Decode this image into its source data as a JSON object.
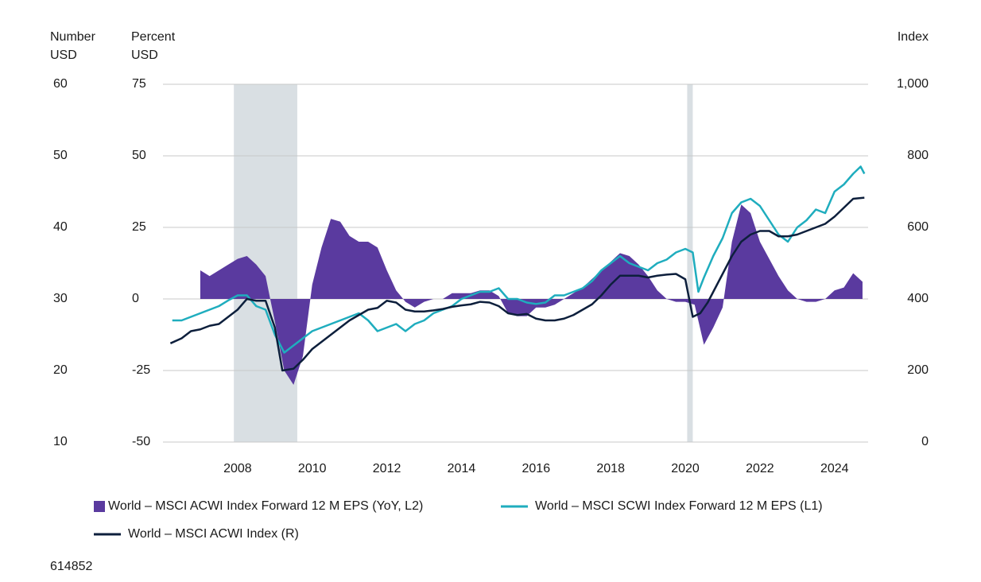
{
  "chart_data": {
    "type": "area-line",
    "y_label": [
      "Number",
      "USD"
    ],
    "y3_label": [
      "Percent",
      "USD"
    ],
    "y2_label": [
      "Index"
    ],
    "source": "614852",
    "xlim": [
      2006,
      2024.9
    ],
    "xticks": [
      2008,
      2010,
      2012,
      2014,
      2016,
      2018,
      2020,
      2022,
      2024
    ],
    "ylim": [
      10,
      60
    ],
    "yticks": [
      10,
      20,
      30,
      40,
      50,
      60
    ],
    "y3lim": [
      -50,
      75
    ],
    "y3ticks": [
      -50,
      -25,
      0,
      25,
      50,
      75
    ],
    "y2lim": [
      0,
      1000
    ],
    "y2ticks": [
      0,
      200,
      400,
      600,
      800,
      {
        "value": 1000,
        "label": "1,000"
      }
    ],
    "grid": true,
    "shaded_x_ranges": [
      [
        2007.9,
        2009.6
      ],
      [
        2020.05,
        2020.2
      ]
    ],
    "shade_color": "#d9dfe3",
    "series": [
      {
        "name": "World – MSCI ACWI Index Forward 12 M EPS (YoY, L2)",
        "kind": "area",
        "axis": "y3",
        "color": "#5a3a9f",
        "x": [
          2007.0,
          2007.25,
          2007.5,
          2007.75,
          2008.0,
          2008.25,
          2008.5,
          2008.75,
          2009.0,
          2009.25,
          2009.5,
          2009.75,
          2010.0,
          2010.25,
          2010.5,
          2010.75,
          2011.0,
          2011.25,
          2011.5,
          2011.75,
          2012.0,
          2012.25,
          2012.5,
          2012.75,
          2013.0,
          2013.25,
          2013.5,
          2013.75,
          2014.0,
          2014.25,
          2014.5,
          2014.75,
          2015.0,
          2015.25,
          2015.5,
          2015.75,
          2016.0,
          2016.25,
          2016.5,
          2016.75,
          2017.0,
          2017.25,
          2017.5,
          2017.75,
          2018.0,
          2018.25,
          2018.5,
          2018.75,
          2019.0,
          2019.25,
          2019.5,
          2019.75,
          2020.0,
          2020.25,
          2020.5,
          2020.75,
          2021.0,
          2021.25,
          2021.5,
          2021.75,
          2022.0,
          2022.25,
          2022.5,
          2022.75,
          2023.0,
          2023.25,
          2023.5,
          2023.75,
          2024.0,
          2024.25,
          2024.5,
          2024.75
        ],
        "values": [
          10,
          8,
          10,
          12,
          14,
          15,
          12,
          8,
          -8,
          -25,
          -30,
          -20,
          5,
          18,
          28,
          27,
          22,
          20,
          20,
          18,
          10,
          3,
          -1,
          -3,
          -1,
          0,
          0,
          2,
          2,
          2,
          3,
          3,
          1,
          -5,
          -6,
          -6,
          -3,
          -3,
          -2,
          0,
          2,
          4,
          7,
          10,
          13,
          16,
          15,
          12,
          8,
          3,
          0,
          -1,
          -1,
          -2,
          -16,
          -10,
          -3,
          20,
          33,
          30,
          20,
          14,
          8,
          3,
          0,
          -1,
          -1,
          0,
          3,
          4,
          9,
          6
        ]
      },
      {
        "name": "World – MSCI SCWI Index Forward 12 M EPS (L1)",
        "kind": "line",
        "axis": "y",
        "color": "#1fadbe",
        "x": [
          2006.25,
          2006.5,
          2006.75,
          2007.0,
          2007.25,
          2007.5,
          2007.75,
          2008.0,
          2008.25,
          2008.5,
          2008.75,
          2009.0,
          2009.25,
          2009.5,
          2009.75,
          2010.0,
          2010.25,
          2010.5,
          2010.75,
          2011.0,
          2011.25,
          2011.5,
          2011.75,
          2012.0,
          2012.25,
          2012.5,
          2012.75,
          2013.0,
          2013.25,
          2013.5,
          2013.75,
          2014.0,
          2014.25,
          2014.5,
          2014.75,
          2015.0,
          2015.25,
          2015.5,
          2015.75,
          2016.0,
          2016.25,
          2016.5,
          2016.75,
          2017.0,
          2017.25,
          2017.5,
          2017.75,
          2018.0,
          2018.25,
          2018.5,
          2018.75,
          2019.0,
          2019.25,
          2019.5,
          2019.75,
          2020.0,
          2020.2,
          2020.35,
          2020.5,
          2020.75,
          2021.0,
          2021.25,
          2021.5,
          2021.75,
          2022.0,
          2022.25,
          2022.5,
          2022.75,
          2023.0,
          2023.25,
          2023.5,
          2023.75,
          2024.0,
          2024.25,
          2024.5,
          2024.7,
          2024.8
        ],
        "values": [
          27,
          27,
          27.5,
          28,
          28.5,
          29,
          29.8,
          30.5,
          30.5,
          29,
          28.5,
          25,
          22.5,
          23.5,
          24.5,
          25.5,
          26,
          26.5,
          27,
          27.5,
          28,
          27,
          25.5,
          26,
          26.5,
          25.5,
          26.5,
          27,
          28,
          28.5,
          29,
          30,
          30.5,
          31,
          31,
          31.5,
          30,
          30,
          29.5,
          29.3,
          29.5,
          30.5,
          30.5,
          31,
          31.5,
          32.5,
          34,
          35,
          36,
          35,
          34.5,
          34,
          35,
          35.5,
          36.5,
          37,
          36.5,
          31,
          33,
          36,
          38.5,
          42,
          43.5,
          44,
          43,
          41,
          39,
          38,
          40,
          41,
          42.5,
          42,
          45,
          46,
          47.5,
          48.5,
          47.5
        ]
      },
      {
        "name": "World – MSCI ACWI Index (R)",
        "kind": "line",
        "axis": "y2",
        "color": "#0d1f3c",
        "x": [
          2006.2,
          2006.5,
          2006.75,
          2007.0,
          2007.25,
          2007.5,
          2007.75,
          2008.0,
          2008.25,
          2008.5,
          2008.75,
          2009.0,
          2009.2,
          2009.5,
          2009.75,
          2010.0,
          2010.25,
          2010.5,
          2010.75,
          2011.0,
          2011.25,
          2011.5,
          2011.75,
          2012.0,
          2012.25,
          2012.5,
          2012.75,
          2013.0,
          2013.25,
          2013.5,
          2013.75,
          2014.0,
          2014.25,
          2014.5,
          2014.75,
          2015.0,
          2015.25,
          2015.5,
          2015.75,
          2016.0,
          2016.25,
          2016.5,
          2016.75,
          2017.0,
          2017.25,
          2017.5,
          2017.75,
          2018.0,
          2018.25,
          2018.5,
          2018.75,
          2019.0,
          2019.25,
          2019.5,
          2019.75,
          2020.0,
          2020.2,
          2020.4,
          2020.6,
          2020.75,
          2021.0,
          2021.25,
          2021.5,
          2021.75,
          2022.0,
          2022.25,
          2022.5,
          2022.75,
          2023.0,
          2023.25,
          2023.5,
          2023.75,
          2024.0,
          2024.25,
          2024.5,
          2024.8
        ],
        "values": [
          276,
          290,
          310,
          315,
          325,
          330,
          350,
          370,
          400,
          395,
          395,
          320,
          200,
          205,
          230,
          260,
          280,
          300,
          320,
          340,
          355,
          370,
          375,
          395,
          390,
          370,
          365,
          365,
          368,
          372,
          378,
          382,
          385,
          392,
          390,
          380,
          360,
          355,
          358,
          345,
          340,
          340,
          345,
          355,
          370,
          385,
          410,
          440,
          465,
          465,
          465,
          460,
          465,
          468,
          470,
          455,
          350,
          360,
          390,
          420,
          470,
          520,
          560,
          580,
          590,
          590,
          575,
          575,
          580,
          590,
          600,
          610,
          630,
          655,
          680,
          683
        ]
      }
    ]
  }
}
